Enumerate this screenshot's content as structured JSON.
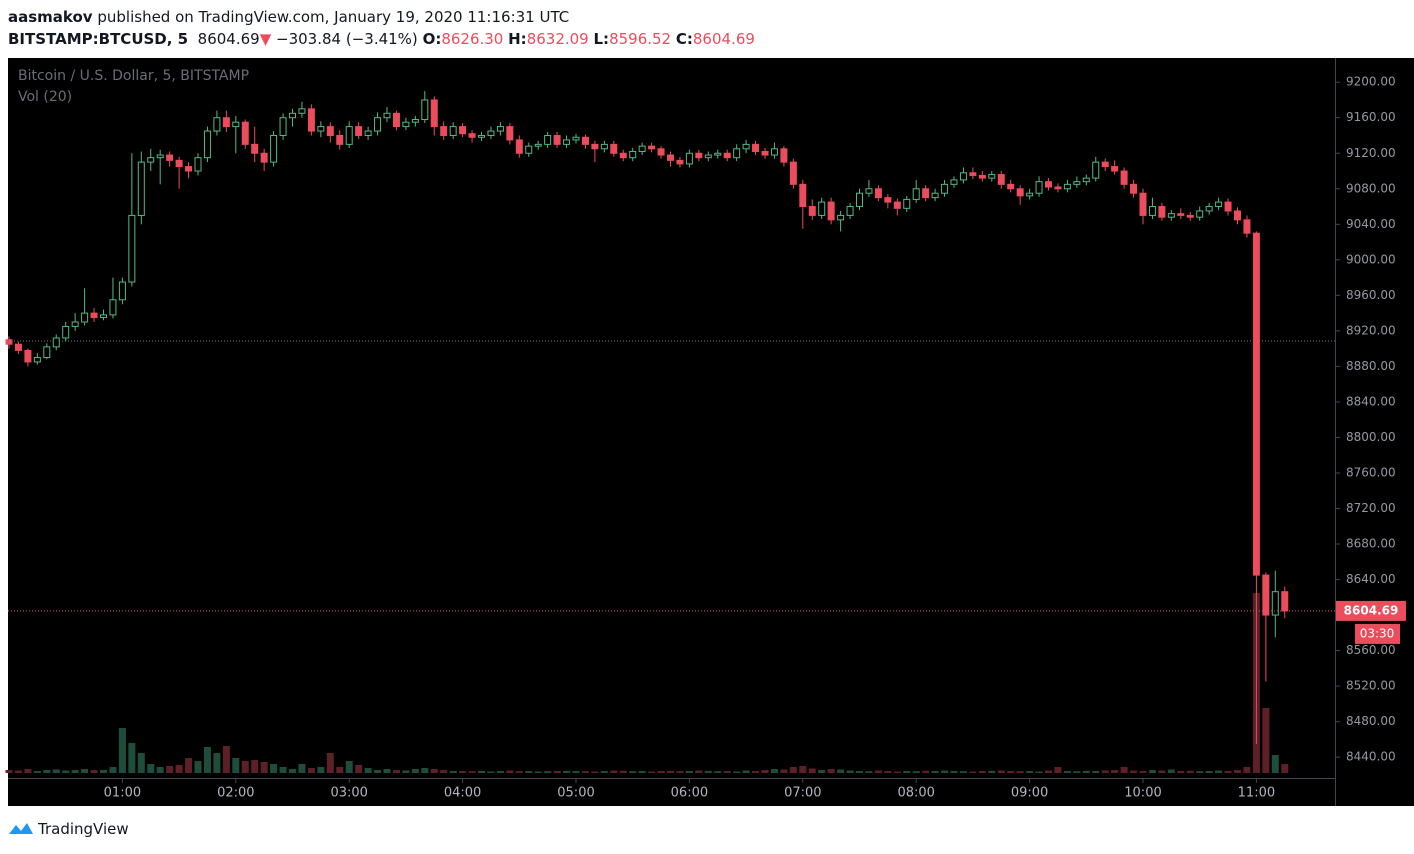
{
  "header": {
    "author": "aasmakov",
    "published": "published on TradingView.com, January 19, 2020 11:16:31 UTC",
    "symbol": "BITSTAMP:BTCUSD, 5",
    "price": "8604.69",
    "arrow": "▼",
    "change": "−303.84 (−3.41%)",
    "o_key": "O:",
    "o": "8626.30",
    "h_key": "H:",
    "h": "8632.09",
    "l_key": "L:",
    "l": "8596.52",
    "c_key": "C:",
    "c": "8604.69"
  },
  "chart_data": {
    "type": "candlestick",
    "title": "Bitcoin / U.S. Dollar, 5, BITSTAMP",
    "volume_title": "Vol (20)",
    "up_color": "#53b987",
    "down_color": "#eb4d5c",
    "up_volume_color": "#1f4d3b",
    "down_volume_color": "#5e2027",
    "categories": [
      null,
      null,
      null,
      null,
      null,
      null,
      null,
      null,
      null,
      null,
      null,
      null,
      "01:00",
      null,
      null,
      null,
      null,
      null,
      null,
      null,
      null,
      null,
      null,
      null,
      "02:00",
      null,
      null,
      null,
      null,
      null,
      null,
      null,
      null,
      null,
      null,
      null,
      "03:00",
      null,
      null,
      null,
      null,
      null,
      null,
      null,
      null,
      null,
      null,
      null,
      "04:00",
      null,
      null,
      null,
      null,
      null,
      null,
      null,
      null,
      null,
      null,
      null,
      "05:00",
      null,
      null,
      null,
      null,
      null,
      null,
      null,
      null,
      null,
      null,
      null,
      "06:00",
      null,
      null,
      null,
      null,
      null,
      null,
      null,
      null,
      null,
      null,
      null,
      "07:00",
      null,
      null,
      null,
      null,
      null,
      null,
      null,
      null,
      null,
      null,
      null,
      "08:00",
      null,
      null,
      null,
      null,
      null,
      null,
      null,
      null,
      null,
      null,
      null,
      "09:00",
      null,
      null,
      null,
      null,
      null,
      null,
      null,
      null,
      null,
      null,
      null,
      "10:00",
      null,
      null,
      null,
      null,
      null,
      null,
      null,
      null,
      null,
      null,
      null,
      "11:00",
      null,
      null,
      null
    ],
    "ohlc": [
      [
        8910,
        8914,
        8900,
        8905
      ],
      [
        8905,
        8908,
        8894,
        8898
      ],
      [
        8898,
        8900,
        8880,
        8885
      ],
      [
        8885,
        8895,
        8882,
        8890
      ],
      [
        8890,
        8906,
        8888,
        8902
      ],
      [
        8902,
        8916,
        8898,
        8912
      ],
      [
        8912,
        8930,
        8908,
        8925
      ],
      [
        8925,
        8940,
        8920,
        8930
      ],
      [
        8930,
        8968,
        8926,
        8940
      ],
      [
        8940,
        8946,
        8930,
        8935
      ],
      [
        8935,
        8944,
        8932,
        8938
      ],
      [
        8938,
        8980,
        8934,
        8955
      ],
      [
        8955,
        8980,
        8950,
        8975
      ],
      [
        8975,
        9120,
        8970,
        9050
      ],
      [
        9050,
        9122,
        9040,
        9110
      ],
      [
        9110,
        9125,
        9100,
        9115
      ],
      [
        9115,
        9124,
        9085,
        9118
      ],
      [
        9118,
        9122,
        9105,
        9112
      ],
      [
        9112,
        9116,
        9080,
        9105
      ],
      [
        9105,
        9110,
        9092,
        9100
      ],
      [
        9100,
        9120,
        9095,
        9115
      ],
      [
        9115,
        9150,
        9110,
        9145
      ],
      [
        9145,
        9168,
        9140,
        9160
      ],
      [
        9160,
        9168,
        9144,
        9150
      ],
      [
        9150,
        9162,
        9120,
        9155
      ],
      [
        9155,
        9158,
        9125,
        9130
      ],
      [
        9130,
        9150,
        9110,
        9120
      ],
      [
        9120,
        9125,
        9100,
        9110
      ],
      [
        9110,
        9145,
        9105,
        9140
      ],
      [
        9140,
        9165,
        9135,
        9160
      ],
      [
        9160,
        9170,
        9150,
        9165
      ],
      [
        9165,
        9178,
        9160,
        9170
      ],
      [
        9170,
        9175,
        9140,
        9145
      ],
      [
        9145,
        9156,
        9138,
        9150
      ],
      [
        9150,
        9155,
        9132,
        9140
      ],
      [
        9140,
        9146,
        9124,
        9130
      ],
      [
        9130,
        9156,
        9126,
        9150
      ],
      [
        9150,
        9155,
        9136,
        9140
      ],
      [
        9140,
        9150,
        9135,
        9145
      ],
      [
        9145,
        9166,
        9140,
        9160
      ],
      [
        9160,
        9172,
        9155,
        9165
      ],
      [
        9165,
        9168,
        9146,
        9150
      ],
      [
        9150,
        9160,
        9146,
        9155
      ],
      [
        9155,
        9162,
        9150,
        9158
      ],
      [
        9158,
        9190,
        9154,
        9180
      ],
      [
        9180,
        9184,
        9140,
        9150
      ],
      [
        9150,
        9156,
        9135,
        9140
      ],
      [
        9140,
        9155,
        9136,
        9150
      ],
      [
        9150,
        9154,
        9138,
        9142
      ],
      [
        9142,
        9146,
        9132,
        9138
      ],
      [
        9138,
        9144,
        9134,
        9140
      ],
      [
        9140,
        9150,
        9136,
        9145
      ],
      [
        9145,
        9155,
        9140,
        9150
      ],
      [
        9150,
        9154,
        9130,
        9135
      ],
      [
        9135,
        9140,
        9115,
        9120
      ],
      [
        9120,
        9132,
        9116,
        9128
      ],
      [
        9128,
        9134,
        9124,
        9130
      ],
      [
        9130,
        9144,
        9126,
        9140
      ],
      [
        9140,
        9144,
        9126,
        9130
      ],
      [
        9130,
        9140,
        9126,
        9135
      ],
      [
        9135,
        9142,
        9131,
        9138
      ],
      [
        9138,
        9141,
        9125,
        9130
      ],
      [
        9130,
        9134,
        9110,
        9125
      ],
      [
        9125,
        9134,
        9121,
        9130
      ],
      [
        9130,
        9134,
        9116,
        9120
      ],
      [
        9120,
        9124,
        9111,
        9115
      ],
      [
        9115,
        9126,
        9111,
        9122
      ],
      [
        9122,
        9132,
        9118,
        9128
      ],
      [
        9128,
        9132,
        9121,
        9125
      ],
      [
        9125,
        9128,
        9114,
        9118
      ],
      [
        9118,
        9122,
        9105,
        9112
      ],
      [
        9112,
        9116,
        9104,
        9108
      ],
      [
        9108,
        9124,
        9104,
        9120
      ],
      [
        9120,
        9124,
        9111,
        9115
      ],
      [
        9115,
        9122,
        9111,
        9118
      ],
      [
        9118,
        9124,
        9114,
        9120
      ],
      [
        9120,
        9124,
        9111,
        9115
      ],
      [
        9115,
        9130,
        9111,
        9125
      ],
      [
        9125,
        9135,
        9120,
        9130
      ],
      [
        9130,
        9134,
        9118,
        9122
      ],
      [
        9122,
        9126,
        9114,
        9118
      ],
      [
        9118,
        9132,
        9114,
        9125
      ],
      [
        9125,
        9128,
        9105,
        9110
      ],
      [
        9110,
        9114,
        9080,
        9085
      ],
      [
        9085,
        9090,
        9035,
        9060
      ],
      [
        9060,
        9068,
        9045,
        9050
      ],
      [
        9050,
        9070,
        9046,
        9065
      ],
      [
        9065,
        9070,
        9040,
        9045
      ],
      [
        9045,
        9055,
        9032,
        9050
      ],
      [
        9050,
        9064,
        9046,
        9060
      ],
      [
        9060,
        9080,
        9056,
        9075
      ],
      [
        9075,
        9090,
        9071,
        9080
      ],
      [
        9080,
        9084,
        9066,
        9070
      ],
      [
        9070,
        9074,
        9058,
        9065
      ],
      [
        9065,
        9069,
        9050,
        9058
      ],
      [
        9058,
        9072,
        9054,
        9068
      ],
      [
        9068,
        9090,
        9064,
        9080
      ],
      [
        9080,
        9084,
        9066,
        9070
      ],
      [
        9070,
        9080,
        9066,
        9075
      ],
      [
        9075,
        9090,
        9071,
        9085
      ],
      [
        9085,
        9094,
        9081,
        9090
      ],
      [
        9090,
        9104,
        9086,
        9098
      ],
      [
        9098,
        9104,
        9091,
        9095
      ],
      [
        9095,
        9100,
        9088,
        9092
      ],
      [
        9092,
        9100,
        9088,
        9096
      ],
      [
        9096,
        9100,
        9080,
        9085
      ],
      [
        9085,
        9090,
        9076,
        9080
      ],
      [
        9080,
        9084,
        9062,
        9072
      ],
      [
        9072,
        9080,
        9068,
        9075
      ],
      [
        9075,
        9094,
        9071,
        9088
      ],
      [
        9088,
        9092,
        9078,
        9082
      ],
      [
        9082,
        9086,
        9076,
        9080
      ],
      [
        9080,
        9090,
        9076,
        9085
      ],
      [
        9085,
        9094,
        9081,
        9088
      ],
      [
        9088,
        9096,
        9084,
        9092
      ],
      [
        9092,
        9116,
        9088,
        9110
      ],
      [
        9110,
        9114,
        9100,
        9105
      ],
      [
        9105,
        9112,
        9096,
        9100
      ],
      [
        9100,
        9104,
        9080,
        9085
      ],
      [
        9085,
        9090,
        9070,
        9075
      ],
      [
        9075,
        9080,
        9040,
        9050
      ],
      [
        9050,
        9070,
        9046,
        9060
      ],
      [
        9060,
        9064,
        9044,
        9048
      ],
      [
        9048,
        9056,
        9044,
        9052
      ],
      [
        9052,
        9058,
        9046,
        9050
      ],
      [
        9050,
        9054,
        9044,
        9048
      ],
      [
        9048,
        9060,
        9044,
        9055
      ],
      [
        9055,
        9064,
        9051,
        9060
      ],
      [
        9060,
        9070,
        9056,
        9065
      ],
      [
        9065,
        9069,
        9050,
        9055
      ],
      [
        9055,
        9059,
        9040,
        9045
      ],
      [
        9045,
        9050,
        9025,
        9030
      ],
      [
        9030,
        9032,
        8455,
        8645
      ],
      [
        8645,
        8648,
        8525,
        8600
      ],
      [
        8600,
        8650,
        8575,
        8626.3
      ],
      [
        8626.3,
        8632.09,
        8596.52,
        8604.69
      ]
    ],
    "volume": [
      30,
      25,
      40,
      20,
      30,
      35,
      25,
      30,
      40,
      30,
      30,
      60,
      450,
      300,
      200,
      90,
      60,
      70,
      80,
      150,
      120,
      260,
      200,
      270,
      150,
      120,
      130,
      110,
      90,
      60,
      40,
      90,
      50,
      60,
      200,
      60,
      120,
      80,
      50,
      30,
      40,
      30,
      25,
      40,
      50,
      40,
      30,
      20,
      20,
      18,
      22,
      15,
      20,
      25,
      18,
      20,
      15,
      18,
      20,
      22,
      20,
      18,
      15,
      20,
      25,
      22,
      18,
      20,
      15,
      20,
      22,
      18,
      20,
      25,
      22,
      18,
      20,
      15,
      25,
      20,
      30,
      40,
      35,
      60,
      70,
      45,
      30,
      40,
      35,
      25,
      20,
      18,
      25,
      20,
      15,
      20,
      18,
      22,
      20,
      25,
      20,
      18,
      15,
      20,
      22,
      25,
      20,
      18,
      20,
      15,
      25,
      60,
      20,
      18,
      22,
      20,
      25,
      30,
      60,
      25,
      20,
      30,
      25,
      35,
      20,
      22,
      18,
      20,
      25,
      20,
      30,
      60,
      1800,
      650,
      180,
      90
    ],
    "ylim": [
      8385,
      9225
    ],
    "yticks": [
      {
        "value": 8440,
        "label": "8440.00"
      },
      {
        "value": 8480,
        "label": "8480.00"
      },
      {
        "value": 8520,
        "label": "8520.00"
      },
      {
        "value": 8560,
        "label": "8560.00"
      },
      {
        "value": 8600,
        "label": "8600.00"
      },
      {
        "value": 8640,
        "label": "8640.00"
      },
      {
        "value": 8680,
        "label": "8680.00"
      },
      {
        "value": 8720,
        "label": "8720.00"
      },
      {
        "value": 8760,
        "label": "8760.00"
      },
      {
        "value": 8800,
        "label": "8800.00"
      },
      {
        "value": 8840,
        "label": "8840.00"
      },
      {
        "value": 8880,
        "label": "8880.00"
      },
      {
        "value": 8920,
        "label": "8920.00"
      },
      {
        "value": 8960,
        "label": "8960.00"
      },
      {
        "value": 9000,
        "label": "9000.00"
      },
      {
        "value": 9040,
        "label": "9040.00"
      },
      {
        "value": 9080,
        "label": "9080.00"
      },
      {
        "value": 9120,
        "label": "9120.00"
      },
      {
        "value": 9160,
        "label": "9160.00"
      },
      {
        "value": 9200,
        "label": "9200.00"
      }
    ],
    "prev_close": 8908.53,
    "price_tag": {
      "value": 8604.69,
      "label": "8604.69"
    },
    "countdown": "03:30"
  },
  "footer": {
    "brand": "TradingView"
  }
}
